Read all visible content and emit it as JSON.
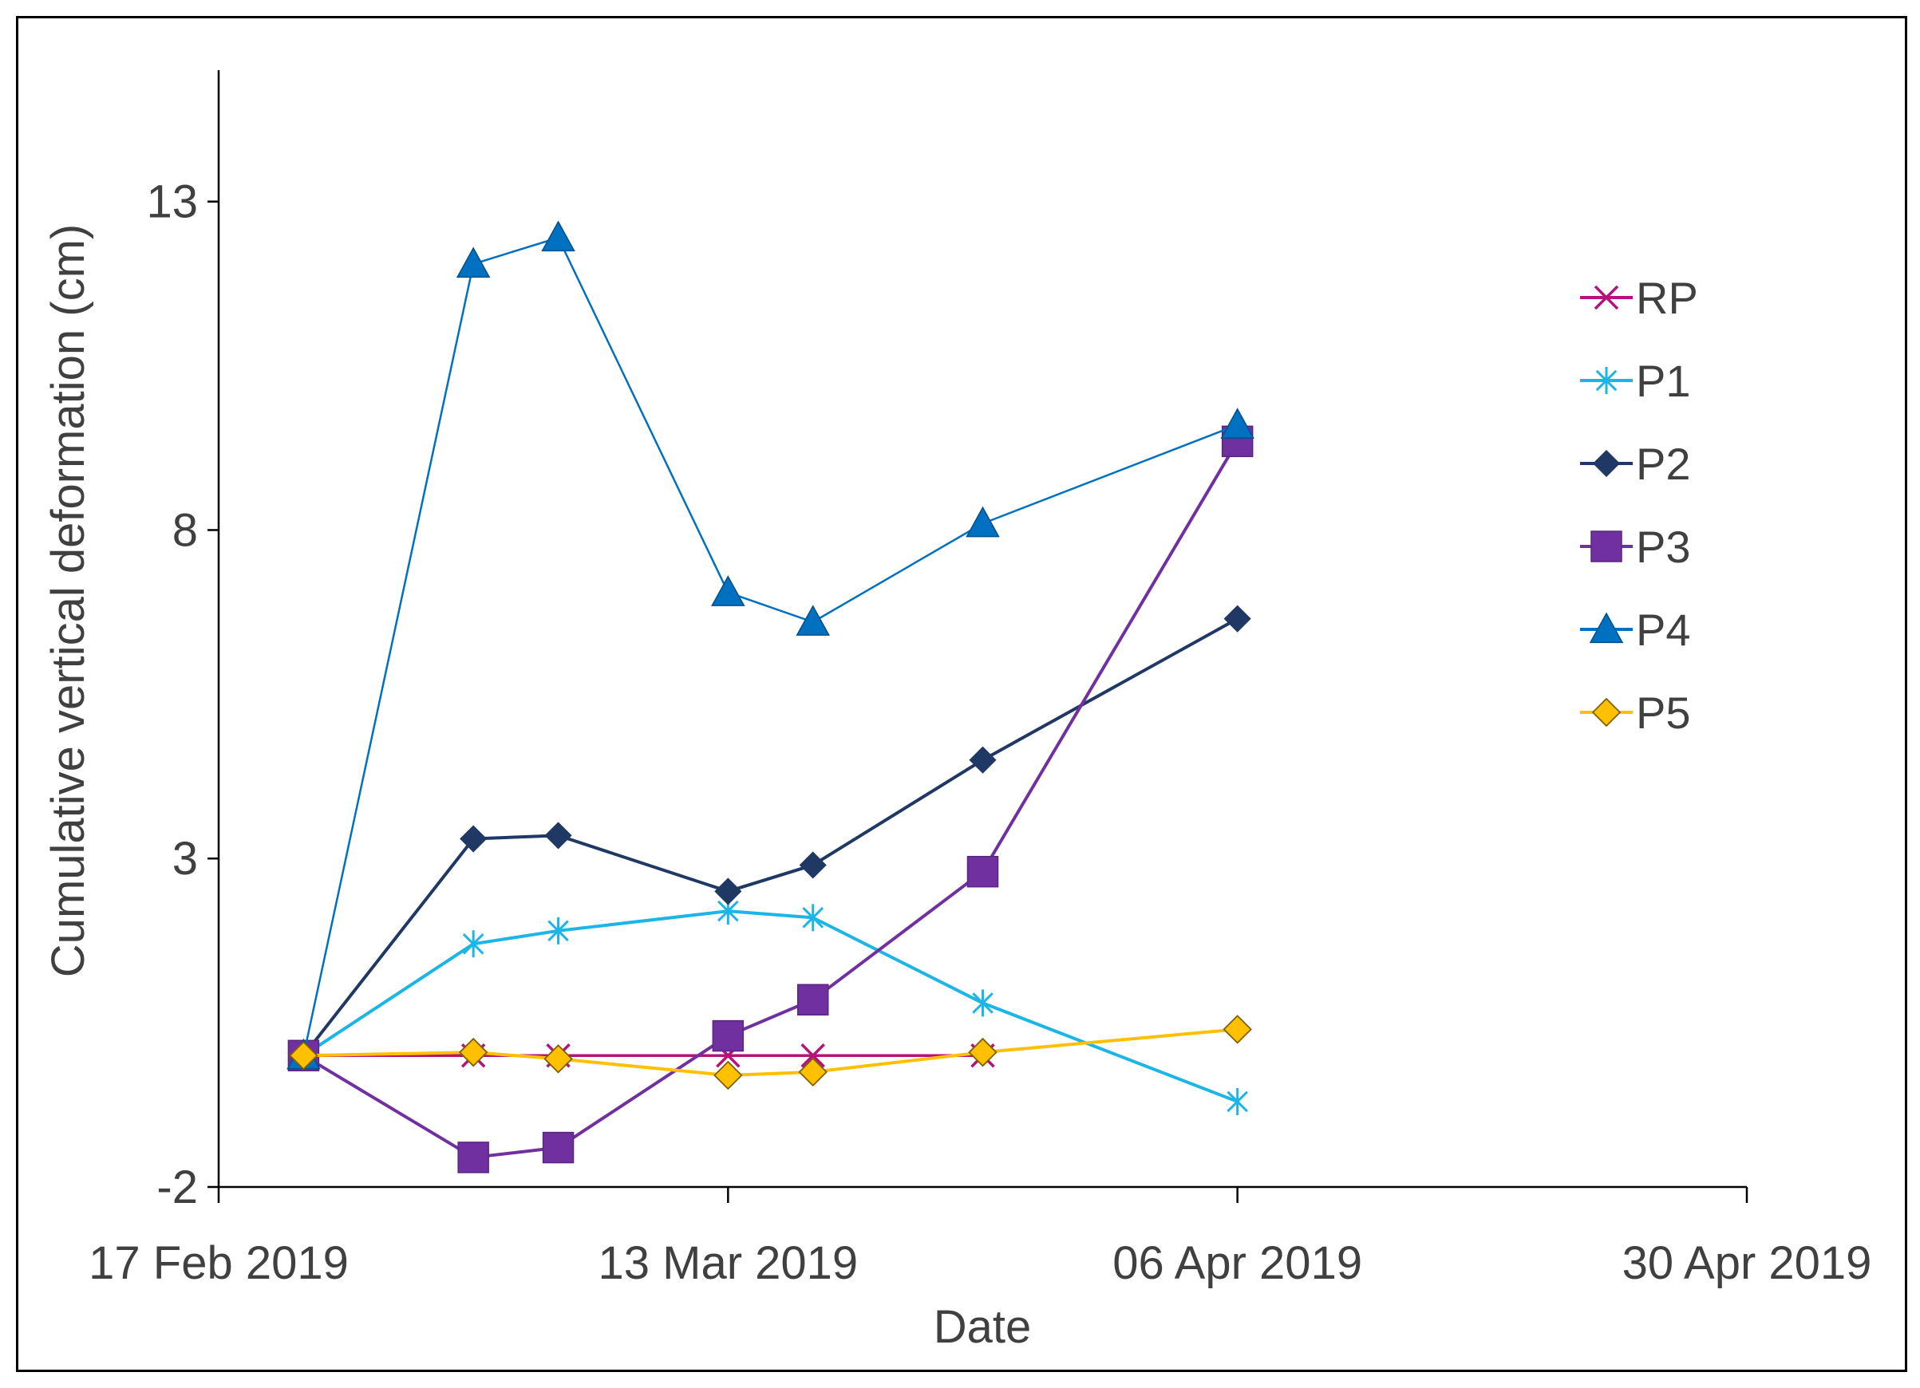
{
  "chart_data": {
    "type": "line",
    "title": "",
    "xlabel": "Date",
    "ylabel": "Cumulative vertical deformation (cm)",
    "ylim": [
      -2,
      15
    ],
    "yticks": [
      -2,
      3,
      8,
      13
    ],
    "ytick_labels": [
      "-2",
      "3",
      "8",
      "13"
    ],
    "xlim_days": [
      0,
      72
    ],
    "xticks_days": [
      0,
      24,
      48,
      72
    ],
    "xtick_labels": [
      "17 Feb 2019",
      "13 Mar 2019",
      "06 Apr 2019",
      "30 Apr 2019"
    ],
    "x_dates": [
      "21 Feb 2019",
      "01 Mar 2019",
      "05 Mar 2019",
      "13 Mar 2019",
      "17 Mar 2019",
      "25 Mar 2019",
      "06 Apr 2019"
    ],
    "x_days": [
      4,
      12,
      16,
      24,
      28,
      36,
      48
    ],
    "legend_position": "right",
    "series": [
      {
        "name": "RP",
        "color": "#B5127A",
        "marker": "x",
        "values": [
          0,
          0,
          0,
          0,
          0,
          0,
          null
        ]
      },
      {
        "name": "P1",
        "color": "#1CB5E8",
        "marker": "asterisk",
        "values": [
          0,
          1.7,
          1.9,
          2.2,
          2.1,
          0.8,
          -0.7
        ]
      },
      {
        "name": "P2",
        "color": "#1F3864",
        "marker": "diamond",
        "values": [
          0,
          3.3,
          3.35,
          2.5,
          2.9,
          4.5,
          6.65
        ]
      },
      {
        "name": "P3",
        "color": "#7030A0",
        "marker": "square",
        "values": [
          0,
          -1.55,
          -1.4,
          0.3,
          0.85,
          2.8,
          9.35
        ]
      },
      {
        "name": "P4",
        "color": "#0070C0",
        "marker": "triangle",
        "values": [
          0,
          12.05,
          12.45,
          7.05,
          6.6,
          8.1,
          9.6
        ]
      },
      {
        "name": "P5",
        "color": "#FFC000",
        "marker": "diamond-outline",
        "values": [
          0,
          0.05,
          -0.05,
          -0.3,
          -0.25,
          0.05,
          0.4
        ]
      }
    ]
  }
}
